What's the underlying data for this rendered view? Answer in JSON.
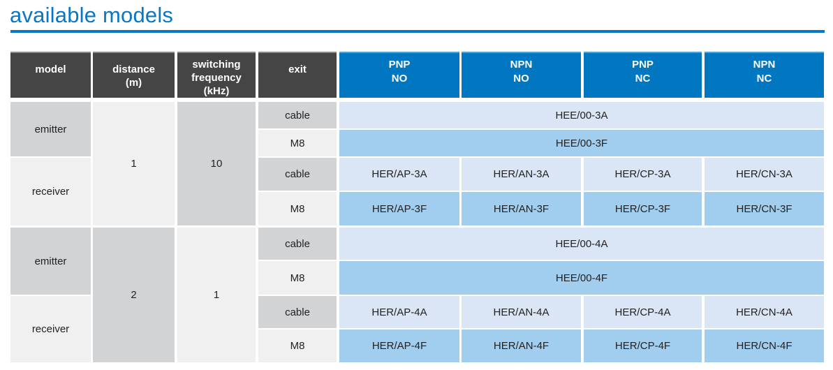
{
  "title": "available models",
  "colors": {
    "accent": "#0077c0",
    "header_dark": "#454546",
    "light_blue": "#dae6f5",
    "mid_blue": "#a1cdee",
    "gray": "#d2d3d5",
    "light_gray": "#f0f0f0"
  },
  "header": {
    "model": "model",
    "distance": [
      "distance",
      "(m)"
    ],
    "frequency": [
      "switching",
      "frequency",
      "(kHz)"
    ],
    "exit": "exit",
    "outputs": [
      [
        "PNP",
        "NO"
      ],
      [
        "NPN",
        "NO"
      ],
      [
        "PNP",
        "NC"
      ],
      [
        "NPN",
        "NC"
      ]
    ]
  },
  "groups": [
    {
      "distance": "1",
      "frequency": "10",
      "emitter": {
        "label": "emitter",
        "cable": {
          "exit": "cable",
          "code": "HEE/00-3A"
        },
        "m8": {
          "exit": "M8",
          "code": "HEE/00-3F"
        }
      },
      "receiver": {
        "label": "receiver",
        "cable": {
          "exit": "cable",
          "codes": [
            "HER/AP-3A",
            "HER/AN-3A",
            "HER/CP-3A",
            "HER/CN-3A"
          ]
        },
        "m8": {
          "exit": "M8",
          "codes": [
            "HER/AP-3F",
            "HER/AN-3F",
            "HER/CP-3F",
            "HER/CN-3F"
          ]
        }
      }
    },
    {
      "distance": "2",
      "frequency": "1",
      "emitter": {
        "label": "emitter",
        "cable": {
          "exit": "cable",
          "code": "HEE/00-4A"
        },
        "m8": {
          "exit": "M8",
          "code": "HEE/00-4F"
        }
      },
      "receiver": {
        "label": "receiver",
        "cable": {
          "exit": "cable",
          "codes": [
            "HER/AP-4A",
            "HER/AN-4A",
            "HER/CP-4A",
            "HER/CN-4A"
          ]
        },
        "m8": {
          "exit": "M8",
          "codes": [
            "HER/AP-4F",
            "HER/AN-4F",
            "HER/CP-4F",
            "HER/CN-4F"
          ]
        }
      }
    }
  ]
}
